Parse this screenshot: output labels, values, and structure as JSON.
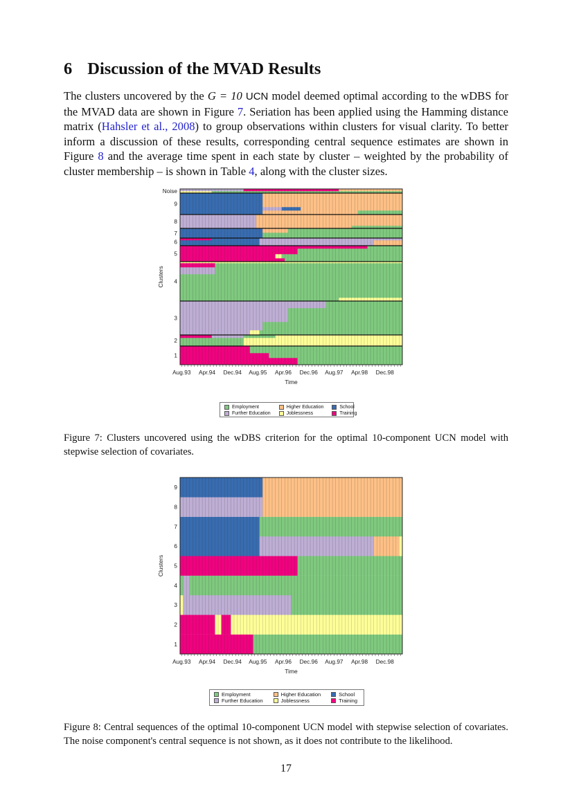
{
  "section": {
    "number": "6",
    "title": "Discussion of the MVAD Results"
  },
  "paragraph": [
    "The clusters uncovered by the ",
    "G = 10",
    " ",
    "UCN",
    " model deemed optimal according to the wDBS for the MVAD data are shown in Figure ",
    "7",
    ". Seriation has been applied using the Hamming distance matrix (",
    "Hahsler et al., 2008",
    ") to group observations within clusters for visual clarity. To better inform a discussion of these results, corresponding central sequence estimates are shown in Figure ",
    "8",
    " and the average time spent in each state by cluster – weighted by the probability of cluster membership – is shown in Table ",
    "4",
    ", along with the cluster sizes."
  ],
  "states": {
    "Employment": "#7fc97f",
    "Further Education": "#beaed4",
    "Higher Education": "#fdc086",
    "Joblessness": "#ffff99",
    "School": "#386cb0",
    "Training": "#f0027f"
  },
  "legend": [
    "Employment",
    "Higher Education",
    "School",
    "Further Education",
    "Joblessness",
    "Training"
  ],
  "figure7": {
    "caption": "Figure 7: Clusters uncovered using the wDBS criterion for the optimal 10-component UCN model with stepwise selection of covariates.",
    "chart_data": {
      "type": "heatmap",
      "subtype": "sequence index plot",
      "xlabel": "Time",
      "ylabel": "Clusters",
      "x_tick_labels": [
        "Aug.93",
        "Apr.94",
        "Dec.94",
        "Aug.95",
        "Apr.96",
        "Dec.96",
        "Aug.97",
        "Apr.98",
        "Dec.98"
      ],
      "months": 70,
      "clusters": [
        {
          "label": "1",
          "groups": [
            {
              "rows": 10,
              "seq": [
                [
                  "Training",
                  37
                ],
                [
                  "Employment",
                  33
                ]
              ]
            },
            {
              "rows": 7,
              "seq": [
                [
                  "Training",
                  28
                ],
                [
                  "Employment",
                  42
                ]
              ]
            },
            {
              "rows": 10,
              "seq": [
                [
                  "Training",
                  22
                ],
                [
                  "Employment",
                  48
                ]
              ]
            }
          ]
        },
        {
          "label": "2",
          "groups": [
            {
              "rows": 12,
              "seq": [
                [
                  "Employment",
                  20
                ],
                [
                  "Joblessness",
                  50
                ]
              ]
            },
            {
              "rows": 4,
              "seq": [
                [
                  "Training",
                  10
                ],
                [
                  "Further Education",
                  10
                ],
                [
                  "Employment",
                  10
                ],
                [
                  "Joblessness",
                  40
                ]
              ]
            }
          ]
        },
        {
          "label": "3",
          "groups": [
            {
              "rows": 7,
              "seq": [
                [
                  "Further Education",
                  22
                ],
                [
                  "Joblessness",
                  3
                ],
                [
                  "Employment",
                  45
                ]
              ]
            },
            {
              "rows": 12,
              "seq": [
                [
                  "Further Education",
                  26
                ],
                [
                  "Employment",
                  44
                ]
              ]
            },
            {
              "rows": 20,
              "seq": [
                [
                  "Further Education",
                  34
                ],
                [
                  "Employment",
                  36
                ]
              ]
            },
            {
              "rows": 10,
              "seq": [
                [
                  "Further Education",
                  46
                ],
                [
                  "Employment",
                  24
                ]
              ]
            }
          ]
        },
        {
          "label": "4",
          "groups": [
            {
              "rows": 5,
              "seq": [
                [
                  "Employment",
                  50
                ],
                [
                  "Joblessness",
                  20
                ]
              ]
            },
            {
              "rows": 34,
              "seq": [
                [
                  "Employment",
                  70
                ]
              ]
            },
            {
              "rows": 10,
              "seq": [
                [
                  "Further Education",
                  11
                ],
                [
                  "Employment",
                  59
                ]
              ]
            },
            {
              "rows": 6,
              "seq": [
                [
                  "Training",
                  11
                ],
                [
                  "Employment",
                  59
                ]
              ]
            },
            {
              "rows": 2,
              "seq": [
                [
                  "Joblessness",
                  70
                ]
              ]
            }
          ]
        },
        {
          "label": "5",
          "groups": [
            {
              "rows": 5,
              "seq": [
                [
                  "Training",
                  33
                ],
                [
                  "Employment",
                  37
                ]
              ]
            },
            {
              "rows": 6,
              "seq": [
                [
                  "Training",
                  30
                ],
                [
                  "Joblessness",
                  2
                ],
                [
                  "Employment",
                  38
                ]
              ]
            },
            {
              "rows": 8,
              "seq": [
                [
                  "Training",
                  37
                ],
                [
                  "Employment",
                  33
                ]
              ]
            },
            {
              "rows": 4,
              "seq": [
                [
                  "Training",
                  59
                ],
                [
                  "Employment",
                  11
                ]
              ]
            }
          ]
        },
        {
          "label": "6",
          "groups": [
            {
              "rows": 8,
              "seq": [
                [
                  "School",
                  25
                ],
                [
                  "Further Education",
                  36
                ],
                [
                  "Higher Education",
                  9
                ]
              ]
            },
            {
              "rows": 3,
              "seq": [
                [
                  "Training",
                  10
                ],
                [
                  "School",
                  15
                ],
                [
                  "Further Education",
                  45
                ]
              ]
            }
          ]
        },
        {
          "label": "7",
          "groups": [
            {
              "rows": 8,
              "seq": [
                [
                  "School",
                  26
                ],
                [
                  "Employment",
                  44
                ]
              ]
            },
            {
              "rows": 6,
              "seq": [
                [
                  "School",
                  26
                ],
                [
                  "Higher Education",
                  8
                ],
                [
                  "Employment",
                  36
                ]
              ]
            }
          ]
        },
        {
          "label": "8",
          "groups": [
            {
              "rows": 4,
              "seq": [
                [
                  "Further Education",
                  24
                ],
                [
                  "Higher Education",
                  30
                ],
                [
                  "Employment",
                  16
                ]
              ]
            },
            {
              "rows": 16,
              "seq": [
                [
                  "Further Education",
                  24
                ],
                [
                  "Higher Education",
                  46
                ]
              ]
            }
          ]
        },
        {
          "label": "9",
          "groups": [
            {
              "rows": 6,
              "seq": [
                [
                  "School",
                  26
                ],
                [
                  "Higher Education",
                  30
                ],
                [
                  "Employment",
                  14
                ]
              ]
            },
            {
              "rows": 5,
              "seq": [
                [
                  "School",
                  26
                ],
                [
                  "Further Education",
                  6
                ],
                [
                  "School",
                  6
                ],
                [
                  "Higher Education",
                  32
                ]
              ]
            },
            {
              "rows": 20,
              "seq": [
                [
                  "School",
                  26
                ],
                [
                  "Higher Education",
                  44
                ]
              ]
            }
          ]
        },
        {
          "label": "Noise",
          "groups": [
            {
              "rows": 3,
              "seq": [
                [
                  "Joblessness",
                  10
                ],
                [
                  "Employment",
                  60
                ]
              ]
            },
            {
              "rows": 3,
              "seq": [
                [
                  "Further Education",
                  20
                ],
                [
                  "Training",
                  30
                ],
                [
                  "Higher Education",
                  20
                ]
              ]
            }
          ]
        }
      ]
    }
  },
  "figure8": {
    "caption": "Figure 8: Central sequences of the optimal 10-component UCN model with stepwise selection of covariates. The noise component's central sequence is not shown, as it does not contribute to the likelihood.",
    "chart_data": {
      "type": "heatmap",
      "subtype": "central sequence plot",
      "xlabel": "Time",
      "ylabel": "Clusters",
      "x_tick_labels": [
        "Aug.93",
        "Apr.94",
        "Dec.94",
        "Aug.95",
        "Apr.96",
        "Dec.96",
        "Aug.97",
        "Apr.98",
        "Dec.98"
      ],
      "months": 70,
      "clusters": [
        {
          "label": "1",
          "seq": [
            [
              "Training",
              23
            ],
            [
              "Employment",
              47
            ]
          ]
        },
        {
          "label": "2",
          "seq": [
            [
              "Training",
              11
            ],
            [
              "Joblessness",
              2
            ],
            [
              "Training",
              3
            ],
            [
              "Joblessness",
              54
            ]
          ]
        },
        {
          "label": "3",
          "seq": [
            [
              "Joblessness",
              1
            ],
            [
              "Further Education",
              34
            ],
            [
              "Employment",
              35
            ]
          ]
        },
        {
          "label": "4",
          "seq": [
            [
              "Employment",
              1
            ],
            [
              "Further Education",
              2
            ],
            [
              "Employment",
              67
            ]
          ]
        },
        {
          "label": "5",
          "seq": [
            [
              "Training",
              37
            ],
            [
              "Employment",
              33
            ]
          ]
        },
        {
          "label": "6",
          "seq": [
            [
              "School",
              25
            ],
            [
              "Further Education",
              36
            ],
            [
              "Higher Education",
              8
            ],
            [
              "Joblessness",
              1
            ]
          ]
        },
        {
          "label": "7",
          "seq": [
            [
              "School",
              25
            ],
            [
              "Employment",
              45
            ]
          ]
        },
        {
          "label": "8",
          "seq": [
            [
              "Further Education",
              26
            ],
            [
              "Higher Education",
              44
            ]
          ]
        },
        {
          "label": "9",
          "seq": [
            [
              "School",
              26
            ],
            [
              "Higher Education",
              44
            ]
          ]
        }
      ]
    }
  },
  "page_number": "17"
}
